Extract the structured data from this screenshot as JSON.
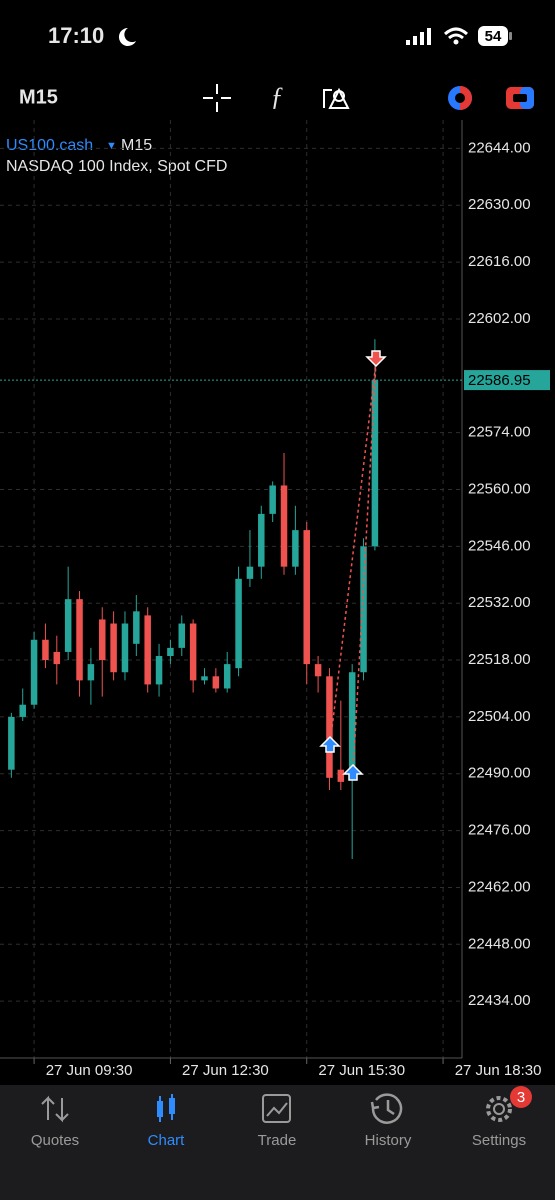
{
  "status_bar": {
    "time": "17:10",
    "battery": "54"
  },
  "toolbar": {
    "timeframe": "M15"
  },
  "chart_data": {
    "type": "candlestick",
    "symbol": "US100.cash",
    "timeframe": "M15",
    "description": "NASDAQ 100 Index, Spot CFD",
    "x": [
      "27 Jun 09:00",
      "27 Jun 09:15",
      "27 Jun 09:30",
      "27 Jun 09:45",
      "27 Jun 10:00",
      "27 Jun 10:15",
      "27 Jun 10:30",
      "27 Jun 10:45",
      "27 Jun 11:00",
      "27 Jun 11:15",
      "27 Jun 11:30",
      "27 Jun 11:45",
      "27 Jun 12:00",
      "27 Jun 12:15",
      "27 Jun 12:30",
      "27 Jun 12:45",
      "27 Jun 13:00",
      "27 Jun 13:15",
      "27 Jun 13:30",
      "27 Jun 13:45",
      "27 Jun 14:00",
      "27 Jun 14:15",
      "27 Jun 14:30",
      "27 Jun 14:45",
      "27 Jun 15:00",
      "27 Jun 15:15",
      "27 Jun 15:30",
      "27 Jun 15:45",
      "27 Jun 16:00",
      "27 Jun 16:15",
      "27 Jun 16:30",
      "27 Jun 16:45",
      "27 Jun 17:00"
    ],
    "open": [
      22491,
      22504,
      22507,
      22523,
      22520,
      22520,
      22533,
      22513,
      22528,
      22527,
      22515,
      22522,
      22529,
      22512,
      22519,
      22521,
      22527,
      22513,
      22514,
      22511,
      22516,
      22538,
      22541,
      22554,
      22561,
      22541,
      22550,
      22517,
      22514,
      22491,
      22490,
      22515,
      22546
    ],
    "high": [
      22505,
      22511,
      22525,
      22527,
      22524,
      22541,
      22535,
      22521,
      22531,
      22530,
      22530,
      22534,
      22531,
      22522,
      22523,
      22529,
      22528,
      22516,
      22516,
      22520,
      22541,
      22550,
      22556,
      22562,
      22569,
      22556,
      22552,
      22519,
      22516,
      22508,
      22517,
      22548,
      22597
    ],
    "low": [
      22489,
      22503,
      22506,
      22516,
      22512,
      22518,
      22509,
      22507,
      22509,
      22513,
      22513,
      22519,
      22510,
      22509,
      22517,
      22519,
      22510,
      22512,
      22510,
      22510,
      22514,
      22536,
      22538,
      22552,
      22539,
      22539,
      22512,
      22510,
      22486,
      22486,
      22469,
      22513,
      22545
    ],
    "close": [
      22504,
      22507,
      22523,
      22518,
      22517,
      22533,
      22513,
      22517,
      22518,
      22515,
      22527,
      22530,
      22512,
      22519,
      22521,
      22527,
      22513,
      22514,
      22511,
      22517,
      22538,
      22541,
      22554,
      22561,
      22541,
      22550,
      22517,
      22514,
      22489,
      22488,
      22515,
      22546,
      22586.95
    ],
    "up_color": "#26a69a",
    "down_color": "#ef5350",
    "current_price": 22586.95,
    "xlim": [
      "27 Jun 08:45",
      "27 Jun 18:55"
    ],
    "xticks": [
      "27 Jun 09:30",
      "27 Jun 12:30",
      "27 Jun 15:30",
      "27 Jun 18:30"
    ],
    "ylim": [
      22420,
      22651
    ],
    "yticks": [
      {
        "value": 22644,
        "label": "22644.00"
      },
      {
        "value": 22630,
        "label": "22630.00"
      },
      {
        "value": 22616,
        "label": "22616.00"
      },
      {
        "value": 22602,
        "label": "22602.00"
      },
      {
        "value": 22574,
        "label": "22574.00"
      },
      {
        "value": 22560,
        "label": "22560.00"
      },
      {
        "value": 22546,
        "label": "22546.00"
      },
      {
        "value": 22532,
        "label": "22532.00"
      },
      {
        "value": 22518,
        "label": "22518.00"
      },
      {
        "value": 22504,
        "label": "22504.00"
      },
      {
        "value": 22490,
        "label": "22490.00"
      },
      {
        "value": 22476,
        "label": "22476.00"
      },
      {
        "value": 22462,
        "label": "22462.00"
      },
      {
        "value": 22448,
        "label": "22448.00"
      },
      {
        "value": 22434,
        "label": "22434.00"
      }
    ],
    "grid": true
  },
  "nav": {
    "items": [
      "Quotes",
      "Chart",
      "Trade",
      "History",
      "Settings"
    ],
    "active": "Chart",
    "badge": "3"
  }
}
